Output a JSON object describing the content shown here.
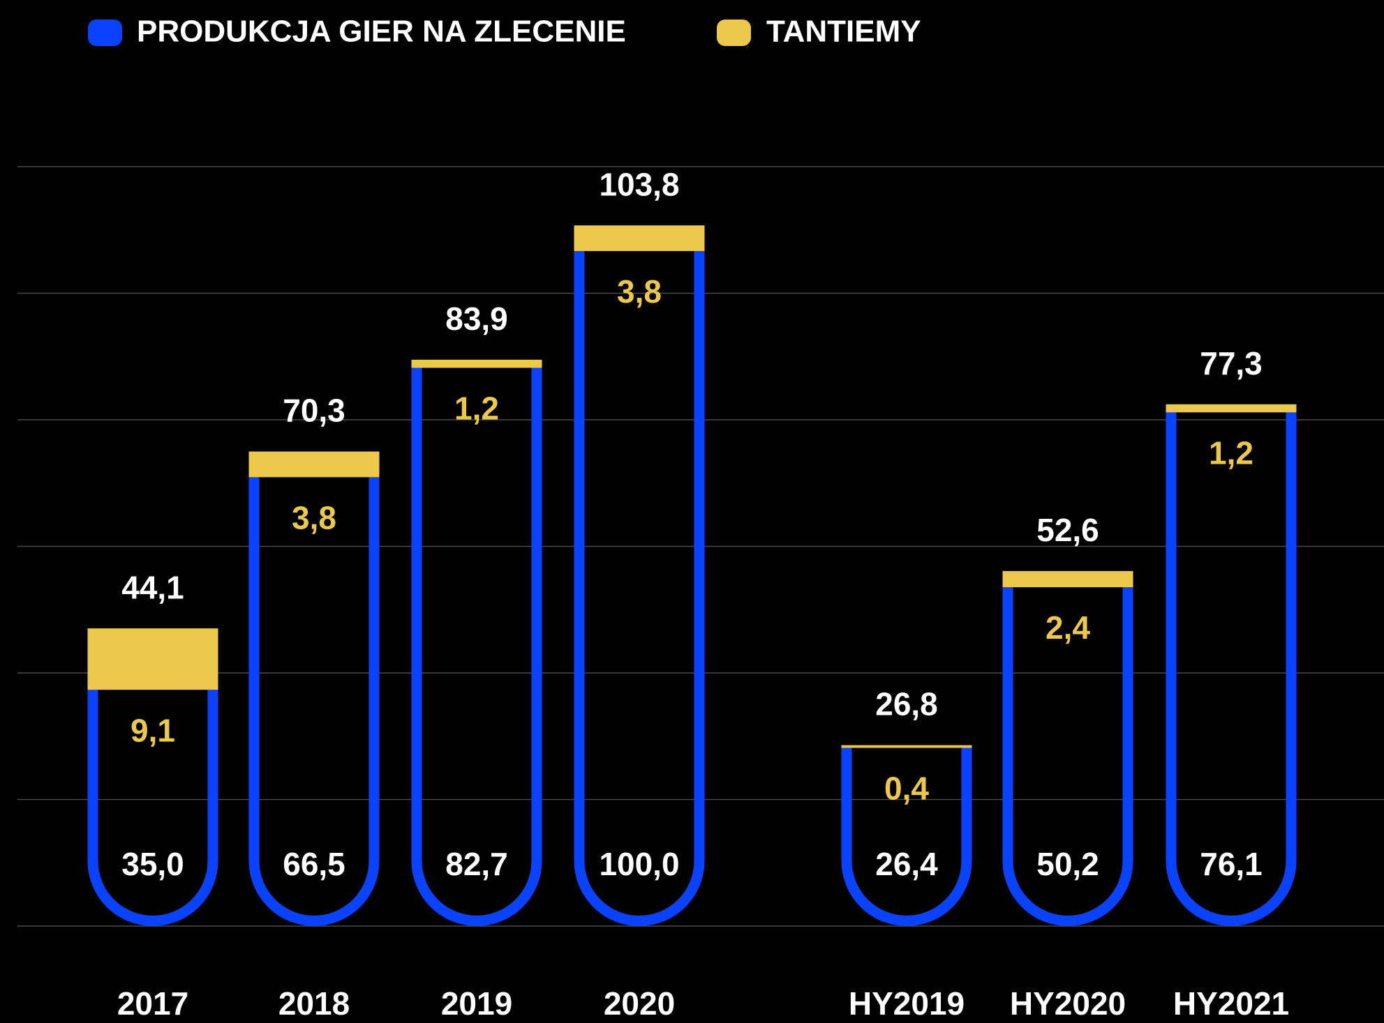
{
  "chart_data": {
    "type": "stacked_bar",
    "categories": [
      "2017",
      "2018",
      "2019",
      "2020",
      "HY2019",
      "HY2020",
      "HY2021"
    ],
    "series": [
      {
        "name": "PRODUKCJA GIER NA ZLECENIE",
        "color": "#0a43ff",
        "values": [
          35.0,
          66.5,
          82.7,
          100.0,
          26.4,
          50.2,
          76.1
        ],
        "value_labels": [
          "35,0",
          "66,5",
          "82,7",
          "100,0",
          "26,4",
          "50,2",
          "76,1"
        ]
      },
      {
        "name": "TANTIEMY",
        "color": "#ecc94b",
        "values": [
          9.1,
          3.8,
          1.2,
          3.8,
          0.4,
          2.4,
          1.2
        ],
        "value_labels": [
          "9,1",
          "3,8",
          "1,2",
          "3,8",
          "0,4",
          "2,4",
          "1,2"
        ]
      }
    ],
    "totals": [
      44.1,
      70.3,
      83.9,
      103.8,
      26.8,
      52.6,
      77.3
    ],
    "total_labels": [
      "44,1",
      "70,3",
      "83,9",
      "103,8",
      "26,8",
      "52,6",
      "77,3"
    ],
    "ylim": [
      0,
      112.5
    ],
    "grid": true
  }
}
